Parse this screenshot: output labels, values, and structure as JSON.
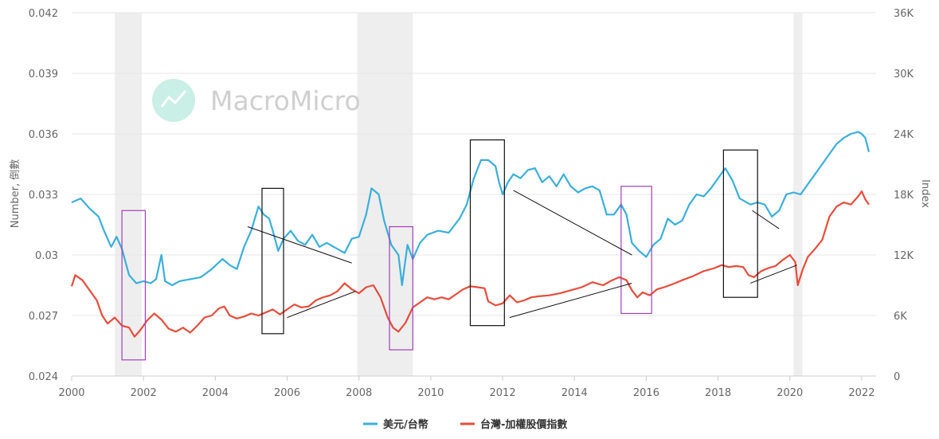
{
  "chart_data": {
    "type": "line",
    "title": "",
    "xlabel": "",
    "y_left_label": "Number, 倒數",
    "y_right_label": "Index",
    "x_range": [
      2000,
      2022.4
    ],
    "y_left_range": [
      0.024,
      0.042
    ],
    "y_right_range": [
      0,
      36000
    ],
    "x_ticks": [
      "2000",
      "2002",
      "2004",
      "2006",
      "2008",
      "2010",
      "2012",
      "2014",
      "2016",
      "2018",
      "2020",
      "2022"
    ],
    "y_left_ticks": [
      "0.024",
      "0.027",
      "0.03",
      "0.033",
      "0.036",
      "0.039",
      "0.042"
    ],
    "y_right_ticks": [
      "0",
      "6K",
      "12K",
      "18K",
      "24K",
      "30K",
      "36K"
    ],
    "grid": "horizontal",
    "legend_position": "bottom",
    "recession_shading": [
      [
        2001.2,
        2001.95
      ],
      [
        2007.95,
        2009.5
      ],
      [
        2020.1,
        2020.35
      ]
    ],
    "series": [
      {
        "name": "美元/台幣",
        "axis": "left",
        "color": "#3aafda",
        "points": [
          [
            2000.0,
            0.0326
          ],
          [
            2000.25,
            0.0328
          ],
          [
            2000.5,
            0.0323
          ],
          [
            2000.75,
            0.0319
          ],
          [
            2000.9,
            0.0312
          ],
          [
            2001.1,
            0.0304
          ],
          [
            2001.25,
            0.0309
          ],
          [
            2001.4,
            0.0303
          ],
          [
            2001.6,
            0.029
          ],
          [
            2001.8,
            0.0286
          ],
          [
            2002.0,
            0.0287
          ],
          [
            2002.2,
            0.0286
          ],
          [
            2002.35,
            0.0288
          ],
          [
            2002.5,
            0.03
          ],
          [
            2002.6,
            0.0287
          ],
          [
            2002.8,
            0.0285
          ],
          [
            2003.0,
            0.0287
          ],
          [
            2003.3,
            0.0288
          ],
          [
            2003.6,
            0.0289
          ],
          [
            2003.9,
            0.0293
          ],
          [
            2004.2,
            0.0298
          ],
          [
            2004.4,
            0.0295
          ],
          [
            2004.6,
            0.0293
          ],
          [
            2004.8,
            0.0304
          ],
          [
            2005.0,
            0.0312
          ],
          [
            2005.2,
            0.0324
          ],
          [
            2005.35,
            0.032
          ],
          [
            2005.5,
            0.0318
          ],
          [
            2005.6,
            0.0312
          ],
          [
            2005.75,
            0.0302
          ],
          [
            2005.9,
            0.0308
          ],
          [
            2006.1,
            0.0312
          ],
          [
            2006.3,
            0.0307
          ],
          [
            2006.5,
            0.0305
          ],
          [
            2006.7,
            0.031
          ],
          [
            2006.9,
            0.0304
          ],
          [
            2007.1,
            0.0306
          ],
          [
            2007.4,
            0.0303
          ],
          [
            2007.6,
            0.0301
          ],
          [
            2007.8,
            0.0308
          ],
          [
            2008.0,
            0.0309
          ],
          [
            2008.2,
            0.032
          ],
          [
            2008.35,
            0.0333
          ],
          [
            2008.55,
            0.033
          ],
          [
            2008.7,
            0.0317
          ],
          [
            2008.9,
            0.0305
          ],
          [
            2009.1,
            0.03
          ],
          [
            2009.2,
            0.0285
          ],
          [
            2009.35,
            0.0305
          ],
          [
            2009.5,
            0.0298
          ],
          [
            2009.7,
            0.0306
          ],
          [
            2009.9,
            0.031
          ],
          [
            2010.2,
            0.0312
          ],
          [
            2010.5,
            0.0311
          ],
          [
            2010.8,
            0.0318
          ],
          [
            2011.0,
            0.0325
          ],
          [
            2011.2,
            0.0338
          ],
          [
            2011.4,
            0.0347
          ],
          [
            2011.6,
            0.0347
          ],
          [
            2011.8,
            0.0344
          ],
          [
            2011.9,
            0.0336
          ],
          [
            2012.0,
            0.033
          ],
          [
            2012.15,
            0.0336
          ],
          [
            2012.3,
            0.034
          ],
          [
            2012.5,
            0.0338
          ],
          [
            2012.7,
            0.0342
          ],
          [
            2012.9,
            0.0343
          ],
          [
            2013.1,
            0.0336
          ],
          [
            2013.3,
            0.0339
          ],
          [
            2013.5,
            0.0334
          ],
          [
            2013.7,
            0.034
          ],
          [
            2013.9,
            0.0334
          ],
          [
            2014.1,
            0.0331
          ],
          [
            2014.3,
            0.0333
          ],
          [
            2014.5,
            0.0334
          ],
          [
            2014.7,
            0.0332
          ],
          [
            2014.9,
            0.032
          ],
          [
            2015.1,
            0.032
          ],
          [
            2015.3,
            0.0325
          ],
          [
            2015.45,
            0.032
          ],
          [
            2015.6,
            0.0306
          ],
          [
            2015.8,
            0.0302
          ],
          [
            2016.0,
            0.0299
          ],
          [
            2016.2,
            0.0305
          ],
          [
            2016.4,
            0.0308
          ],
          [
            2016.6,
            0.0318
          ],
          [
            2016.8,
            0.0315
          ],
          [
            2017.0,
            0.0317
          ],
          [
            2017.2,
            0.0325
          ],
          [
            2017.4,
            0.033
          ],
          [
            2017.6,
            0.0329
          ],
          [
            2017.8,
            0.0333
          ],
          [
            2018.0,
            0.0338
          ],
          [
            2018.2,
            0.0343
          ],
          [
            2018.4,
            0.0337
          ],
          [
            2018.6,
            0.0328
          ],
          [
            2018.9,
            0.0325
          ],
          [
            2019.1,
            0.0326
          ],
          [
            2019.3,
            0.0325
          ],
          [
            2019.5,
            0.0319
          ],
          [
            2019.7,
            0.0322
          ],
          [
            2019.9,
            0.033
          ],
          [
            2020.1,
            0.0331
          ],
          [
            2020.3,
            0.033
          ],
          [
            2020.5,
            0.0335
          ],
          [
            2020.7,
            0.034
          ],
          [
            2020.9,
            0.0345
          ],
          [
            2021.1,
            0.035
          ],
          [
            2021.3,
            0.0355
          ],
          [
            2021.5,
            0.0358
          ],
          [
            2021.7,
            0.036
          ],
          [
            2021.9,
            0.0361
          ],
          [
            2022.0,
            0.036
          ],
          [
            2022.1,
            0.0358
          ],
          [
            2022.2,
            0.0351
          ]
        ]
      },
      {
        "name": "台灣-加權股價指數",
        "axis": "right",
        "color": "#e74c3c",
        "points": [
          [
            2000.0,
            8900
          ],
          [
            2000.1,
            10000
          ],
          [
            2000.3,
            9500
          ],
          [
            2000.5,
            8500
          ],
          [
            2000.7,
            7500
          ],
          [
            2000.85,
            6000
          ],
          [
            2001.0,
            5200
          ],
          [
            2001.2,
            5800
          ],
          [
            2001.4,
            5000
          ],
          [
            2001.6,
            4800
          ],
          [
            2001.75,
            3900
          ],
          [
            2001.9,
            4500
          ],
          [
            2002.1,
            5500
          ],
          [
            2002.3,
            6200
          ],
          [
            2002.5,
            5600
          ],
          [
            2002.7,
            4700
          ],
          [
            2002.9,
            4400
          ],
          [
            2003.1,
            4800
          ],
          [
            2003.3,
            4300
          ],
          [
            2003.5,
            5000
          ],
          [
            2003.7,
            5800
          ],
          [
            2003.9,
            6000
          ],
          [
            2004.1,
            6700
          ],
          [
            2004.25,
            6900
          ],
          [
            2004.4,
            6000
          ],
          [
            2004.6,
            5700
          ],
          [
            2004.8,
            5900
          ],
          [
            2005.0,
            6200
          ],
          [
            2005.2,
            6000
          ],
          [
            2005.4,
            6300
          ],
          [
            2005.6,
            6600
          ],
          [
            2005.8,
            6100
          ],
          [
            2006.0,
            6600
          ],
          [
            2006.2,
            7100
          ],
          [
            2006.4,
            6800
          ],
          [
            2006.6,
            6900
          ],
          [
            2006.8,
            7500
          ],
          [
            2007.0,
            7800
          ],
          [
            2007.2,
            8000
          ],
          [
            2007.4,
            8400
          ],
          [
            2007.6,
            9200
          ],
          [
            2007.8,
            8600
          ],
          [
            2008.0,
            8200
          ],
          [
            2008.2,
            8800
          ],
          [
            2008.4,
            9000
          ],
          [
            2008.6,
            7800
          ],
          [
            2008.8,
            5800
          ],
          [
            2008.95,
            4800
          ],
          [
            2009.1,
            4400
          ],
          [
            2009.3,
            5300
          ],
          [
            2009.5,
            6800
          ],
          [
            2009.7,
            7300
          ],
          [
            2009.9,
            7800
          ],
          [
            2010.1,
            7600
          ],
          [
            2010.3,
            7800
          ],
          [
            2010.5,
            7600
          ],
          [
            2010.7,
            8100
          ],
          [
            2010.9,
            8600
          ],
          [
            2011.1,
            8900
          ],
          [
            2011.3,
            8800
          ],
          [
            2011.5,
            8700
          ],
          [
            2011.6,
            7400
          ],
          [
            2011.8,
            7000
          ],
          [
            2012.0,
            7200
          ],
          [
            2012.2,
            8000
          ],
          [
            2012.4,
            7300
          ],
          [
            2012.6,
            7500
          ],
          [
            2012.8,
            7800
          ],
          [
            2013.0,
            7900
          ],
          [
            2013.3,
            8000
          ],
          [
            2013.6,
            8200
          ],
          [
            2013.9,
            8500
          ],
          [
            2014.2,
            8800
          ],
          [
            2014.5,
            9300
          ],
          [
            2014.8,
            9000
          ],
          [
            2015.0,
            9400
          ],
          [
            2015.25,
            9800
          ],
          [
            2015.45,
            9500
          ],
          [
            2015.6,
            8500
          ],
          [
            2015.75,
            7800
          ],
          [
            2015.9,
            8300
          ],
          [
            2016.1,
            8000
          ],
          [
            2016.3,
            8600
          ],
          [
            2016.5,
            8800
          ],
          [
            2016.8,
            9200
          ],
          [
            2017.0,
            9500
          ],
          [
            2017.3,
            9900
          ],
          [
            2017.6,
            10400
          ],
          [
            2017.9,
            10700
          ],
          [
            2018.1,
            11000
          ],
          [
            2018.3,
            10800
          ],
          [
            2018.5,
            10900
          ],
          [
            2018.7,
            10800
          ],
          [
            2018.85,
            10000
          ],
          [
            2019.0,
            9800
          ],
          [
            2019.2,
            10400
          ],
          [
            2019.4,
            10700
          ],
          [
            2019.6,
            10900
          ],
          [
            2019.8,
            11500
          ],
          [
            2020.0,
            12000
          ],
          [
            2020.15,
            11300
          ],
          [
            2020.22,
            9000
          ],
          [
            2020.35,
            10500
          ],
          [
            2020.5,
            11800
          ],
          [
            2020.7,
            12600
          ],
          [
            2020.9,
            13500
          ],
          [
            2021.1,
            15800
          ],
          [
            2021.3,
            16800
          ],
          [
            2021.5,
            17200
          ],
          [
            2021.7,
            17000
          ],
          [
            2021.9,
            17800
          ],
          [
            2022.0,
            18300
          ],
          [
            2022.1,
            17500
          ],
          [
            2022.2,
            17000
          ]
        ]
      }
    ]
  },
  "annotations": {
    "black_boxes": [
      {
        "x0": 2005.3,
        "x1": 2005.9,
        "y0": 0.0261,
        "y1": 0.0333
      },
      {
        "x0": 2011.1,
        "x1": 2012.05,
        "y0": 0.0265,
        "y1": 0.0357
      },
      {
        "x0": 2018.15,
        "x1": 2019.1,
        "y0": 0.0279,
        "y1": 0.0352
      }
    ],
    "purple_boxes": [
      {
        "x0": 2001.4,
        "x1": 2002.05,
        "y0": 0.0248,
        "y1": 0.0322
      },
      {
        "x0": 2008.85,
        "x1": 2009.5,
        "y0": 0.0253,
        "y1": 0.0314
      },
      {
        "x0": 2015.3,
        "x1": 2016.15,
        "y0": 0.0271,
        "y1": 0.0334
      }
    ],
    "trend_lines": [
      {
        "x0": 2004.9,
        "y0": 0.0314,
        "x1": 2007.8,
        "y1": 0.0296
      },
      {
        "x0": 2006.0,
        "y0": 0.0269,
        "x1": 2007.9,
        "y1": 0.0282
      },
      {
        "x0": 2012.3,
        "y0": 0.0332,
        "x1": 2015.6,
        "y1": 0.03
      },
      {
        "x0": 2012.2,
        "y0": 0.0269,
        "x1": 2015.6,
        "y1": 0.0286
      },
      {
        "x0": 2018.95,
        "y0": 0.0322,
        "x1": 2019.7,
        "y1": 0.0313
      },
      {
        "x0": 2018.9,
        "y0": 0.0286,
        "x1": 2020.2,
        "y1": 0.0295
      }
    ]
  },
  "watermark": {
    "text": "MacroMicro"
  }
}
